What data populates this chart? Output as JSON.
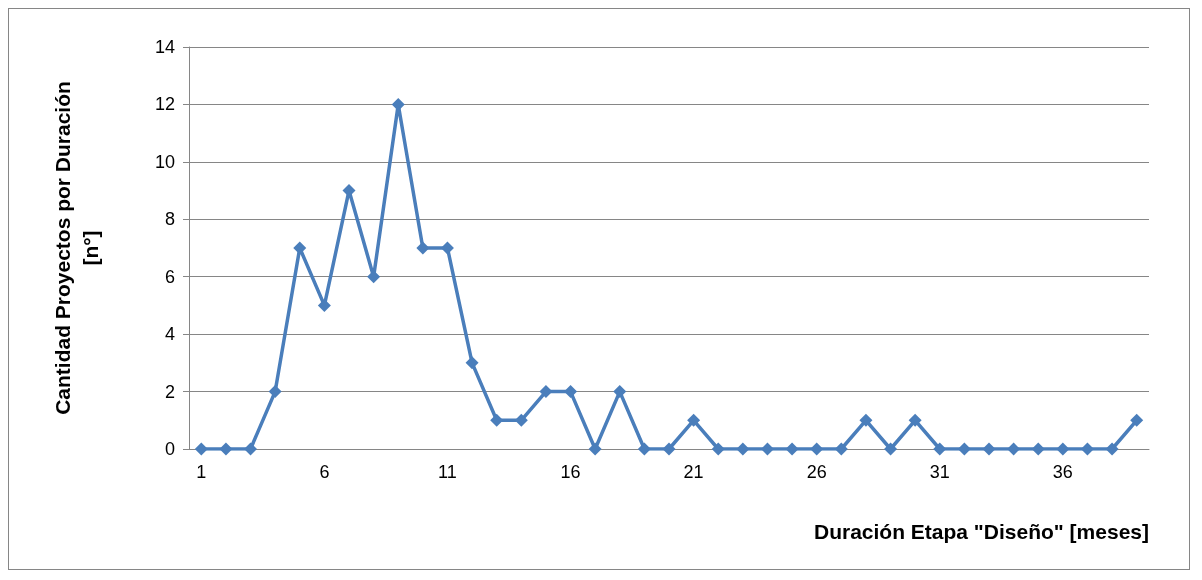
{
  "chart_data": {
    "type": "line",
    "xlabel": "Duración Etapa \"Diseño\" [meses]",
    "ylabel": "Cantidad Proyectos por Duración [n°]",
    "categories": [
      "1",
      null,
      null,
      null,
      null,
      "6",
      null,
      null,
      null,
      null,
      "11",
      null,
      null,
      null,
      null,
      "16",
      null,
      null,
      null,
      null,
      "21",
      null,
      null,
      null,
      null,
      "26",
      null,
      null,
      null,
      null,
      "31",
      null,
      null,
      null,
      null,
      "36",
      null,
      null,
      null
    ],
    "series": [
      {
        "color": "#4a7ebb",
        "values": [
          0,
          0,
          0,
          2,
          7,
          5,
          9,
          6,
          12,
          7,
          7,
          3,
          1,
          1,
          2,
          2,
          0,
          2,
          0,
          0,
          1,
          0,
          0,
          0,
          0,
          0,
          0,
          1,
          0,
          1,
          0,
          0,
          0,
          0,
          0,
          0,
          0,
          0,
          1
        ]
      }
    ],
    "ylim": [
      0,
      14
    ],
    "yticks": [
      0,
      2,
      4,
      6,
      8,
      10,
      12,
      14
    ],
    "grid": "y",
    "marker": "diamond",
    "line_style": "solid"
  }
}
